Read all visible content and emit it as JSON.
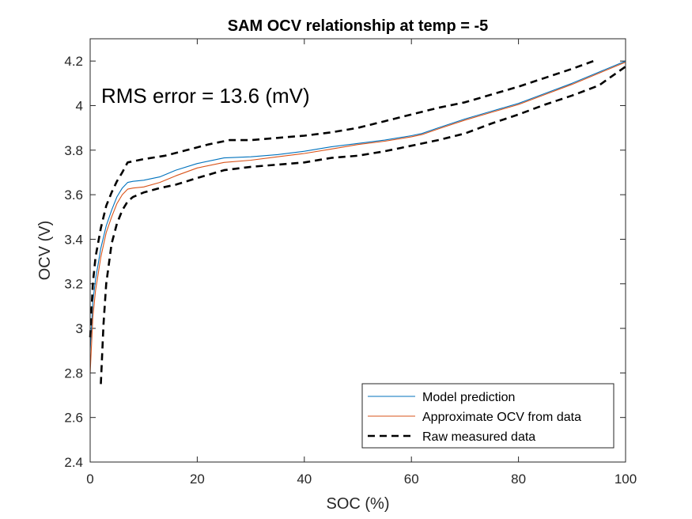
{
  "chart_data": {
    "type": "line",
    "title": "SAM OCV relationship at temp = -5",
    "xlabel": "SOC (%)",
    "ylabel": "OCV (V)",
    "xlim": [
      0,
      100
    ],
    "ylim": [
      2.4,
      4.3
    ],
    "xticks": [
      0,
      20,
      40,
      60,
      80,
      100
    ],
    "yticks": [
      2.4,
      2.6,
      2.8,
      3,
      3.2,
      3.4,
      3.6,
      3.8,
      4,
      4.2
    ],
    "grid": false,
    "legend_position": "bottom-right",
    "annotation": "RMS error = 13.6 (mV)",
    "series": [
      {
        "name": "Model prediction",
        "color": "#0072BD",
        "style": "solid",
        "x": [
          0,
          0.5,
          1,
          2,
          3,
          4,
          5,
          6,
          7,
          8,
          10,
          13,
          16,
          20,
          25,
          30,
          35,
          40,
          45,
          50,
          55,
          60,
          62,
          65,
          70,
          75,
          80,
          85,
          90,
          95,
          99,
          100
        ],
        "y": [
          2.9,
          3.12,
          3.22,
          3.36,
          3.46,
          3.53,
          3.59,
          3.63,
          3.655,
          3.66,
          3.665,
          3.68,
          3.71,
          3.74,
          3.765,
          3.77,
          3.78,
          3.795,
          3.815,
          3.83,
          3.845,
          3.865,
          3.875,
          3.9,
          3.94,
          3.975,
          4.01,
          4.055,
          4.1,
          4.15,
          4.19,
          4.2
        ]
      },
      {
        "name": "Approximate OCV from data",
        "color": "#D95319",
        "style": "solid",
        "x": [
          0,
          0.5,
          1,
          2,
          3,
          4,
          5,
          6,
          7,
          8,
          10,
          13,
          16,
          20,
          25,
          30,
          35,
          40,
          45,
          50,
          55,
          60,
          62,
          65,
          70,
          75,
          80,
          85,
          90,
          95,
          99,
          100
        ],
        "y": [
          2.8,
          3.05,
          3.17,
          3.32,
          3.43,
          3.5,
          3.56,
          3.6,
          3.625,
          3.63,
          3.635,
          3.655,
          3.685,
          3.72,
          3.745,
          3.755,
          3.77,
          3.785,
          3.805,
          3.825,
          3.84,
          3.86,
          3.87,
          3.895,
          3.935,
          3.97,
          4.005,
          4.05,
          4.095,
          4.145,
          4.185,
          4.195
        ]
      },
      {
        "name": "Raw measured data",
        "color": "#000000",
        "style": "dashed",
        "x": [
          0,
          0.5,
          1,
          2,
          3,
          4,
          5,
          6,
          7,
          10,
          14,
          18,
          22,
          26,
          30,
          35,
          40,
          45,
          50,
          55,
          60,
          65,
          70,
          75,
          80,
          85,
          90,
          94
        ],
        "y": [
          2.96,
          3.2,
          3.32,
          3.45,
          3.55,
          3.61,
          3.66,
          3.7,
          3.745,
          3.76,
          3.775,
          3.8,
          3.825,
          3.845,
          3.845,
          3.855,
          3.865,
          3.88,
          3.9,
          3.93,
          3.96,
          3.99,
          4.015,
          4.05,
          4.085,
          4.125,
          4.165,
          4.2
        ],
        "x2": [
          2,
          2.5,
          3,
          4,
          5,
          6,
          7,
          8,
          10,
          13,
          16,
          20,
          25,
          30,
          35,
          40,
          45,
          50,
          55,
          60,
          65,
          70,
          75,
          80,
          85,
          90,
          95,
          100
        ],
        "y2": [
          2.75,
          3.02,
          3.2,
          3.38,
          3.47,
          3.53,
          3.57,
          3.59,
          3.61,
          3.63,
          3.645,
          3.675,
          3.71,
          3.725,
          3.735,
          3.745,
          3.765,
          3.775,
          3.795,
          3.82,
          3.845,
          3.875,
          3.92,
          3.96,
          4.005,
          4.045,
          4.09,
          4.175
        ]
      }
    ]
  }
}
